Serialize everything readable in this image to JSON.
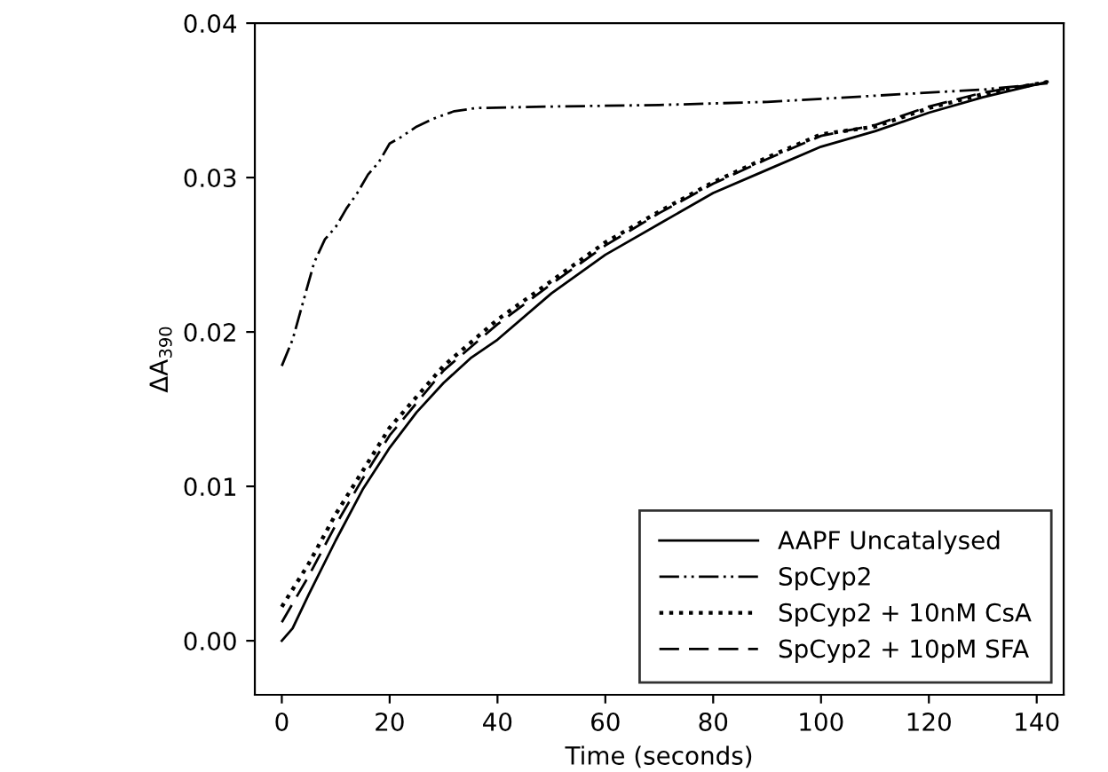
{
  "chart_data": {
    "type": "line",
    "xlabel": "Time (seconds)",
    "ylabel": "ΔA$_{390}$",
    "xlim": [
      -5,
      145
    ],
    "ylim": [
      -0.0035,
      0.04
    ],
    "xticks": [
      0,
      20,
      40,
      60,
      80,
      100,
      120,
      140
    ],
    "yticks": [
      {
        "value": 0,
        "label": "0.00"
      },
      {
        "value": 0.01,
        "label": "0.01"
      },
      {
        "value": 0.02,
        "label": "0.02"
      },
      {
        "value": 0.03,
        "label": "0.03"
      },
      {
        "value": 0.04,
        "label": "0.04"
      }
    ],
    "grid": false,
    "legend": "bottom right",
    "marker": "none",
    "series": [
      {
        "name": "AAPF Uncatalysed",
        "color": "#000000",
        "line_style": "solid",
        "x": [
          0,
          2,
          5,
          10,
          15,
          20,
          25,
          30,
          35,
          40,
          50,
          60,
          70,
          80,
          90,
          100,
          110,
          120,
          130,
          142
        ],
        "values": [
          0.0,
          0.0008,
          0.003,
          0.0065,
          0.0098,
          0.0125,
          0.0148,
          0.0167,
          0.0183,
          0.0195,
          0.0225,
          0.025,
          0.027,
          0.029,
          0.0305,
          0.032,
          0.033,
          0.0342,
          0.0352,
          0.0362
        ]
      },
      {
        "name": "SpCyp2",
        "color": "#000000",
        "line_style": "dashdotdot",
        "x": [
          0,
          2,
          4,
          6,
          8,
          10,
          12,
          14,
          16,
          18,
          20,
          22,
          25,
          28,
          32,
          36,
          50,
          70,
          90,
          110,
          130,
          142
        ],
        "values": [
          0.0178,
          0.0195,
          0.022,
          0.0245,
          0.026,
          0.0268,
          0.028,
          0.029,
          0.0302,
          0.031,
          0.0322,
          0.0326,
          0.0333,
          0.0338,
          0.0343,
          0.0345,
          0.0346,
          0.0347,
          0.0349,
          0.0353,
          0.0357,
          0.0361
        ]
      },
      {
        "name": "SpCyp2 + 10nM CsA",
        "color": "#000000",
        "line_style": "dotted",
        "x": [
          0,
          5,
          10,
          15,
          20,
          30,
          40,
          50,
          60,
          70,
          80,
          90,
          100,
          110,
          120,
          130,
          142
        ],
        "values": [
          0.0022,
          0.005,
          0.0082,
          0.011,
          0.0138,
          0.0178,
          0.0208,
          0.0233,
          0.0258,
          0.0278,
          0.0297,
          0.0313,
          0.0328,
          0.0333,
          0.0345,
          0.0354,
          0.0362
        ]
      },
      {
        "name": "SpCyp2 + 10pM SFA",
        "color": "#000000",
        "line_style": "dashed",
        "x": [
          0,
          5,
          10,
          15,
          20,
          30,
          40,
          50,
          60,
          70,
          80,
          90,
          100,
          110,
          120,
          130,
          142
        ],
        "values": [
          0.0012,
          0.0042,
          0.0075,
          0.0105,
          0.0133,
          0.0175,
          0.0205,
          0.0231,
          0.0256,
          0.0277,
          0.0296,
          0.0312,
          0.0327,
          0.0334,
          0.0346,
          0.0355,
          0.0362
        ]
      }
    ]
  }
}
